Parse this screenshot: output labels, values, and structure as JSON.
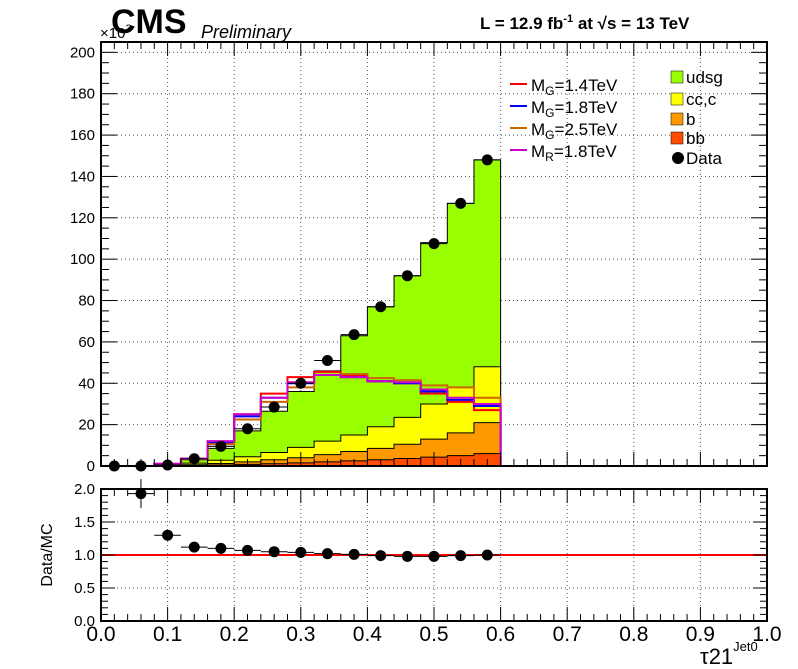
{
  "header": {
    "experiment": "CMS",
    "status": "Preliminary",
    "lumi_text": "L = 12.9 fb",
    "lumi_exp": "-1",
    "energy_text": " at ",
    "sqrt_symbol": "√",
    "energy_value": "s = 13 TeV",
    "y_multiplier": "×10",
    "y_multiplier_exp": "3"
  },
  "chart_data": [
    {
      "type": "bar",
      "stacked": true,
      "xlabel": "τ21",
      "xlabel_sup": "Jet0",
      "xlim": [
        0,
        1
      ],
      "ylim": [
        0,
        205
      ],
      "bin_width": 0.04,
      "bin_edges": [
        0.0,
        0.04,
        0.08,
        0.12,
        0.16,
        0.2,
        0.24,
        0.28,
        0.32,
        0.36,
        0.4,
        0.44,
        0.48,
        0.52,
        0.56,
        0.6
      ],
      "yticks": [
        0,
        20,
        40,
        60,
        80,
        100,
        120,
        140,
        160,
        180,
        200
      ],
      "stack_cumulative": true,
      "stack_order_bottom_to_top": [
        "bb",
        "b",
        "cc,c",
        "udsg"
      ],
      "stack": [
        {
          "name": "bb",
          "color": "#ff4d00",
          "values": [
            0,
            0,
            0.1,
            0.3,
            0.5,
            0.8,
            1.1,
            1.5,
            2.0,
            2.5,
            3.0,
            3.6,
            4.3,
            5.0,
            6.0
          ]
        },
        {
          "name": "b",
          "color": "#ff9900",
          "values": [
            0,
            0,
            0.2,
            0.6,
            1.2,
            2.0,
            3.0,
            4.0,
            5.5,
            7.0,
            8.5,
            10.5,
            13.0,
            16.0,
            21.0
          ]
        },
        {
          "name": "cc,c",
          "color": "#ffff00",
          "values": [
            0,
            0,
            0.4,
            1.4,
            2.8,
            4.5,
            6.5,
            9.0,
            12.0,
            15.0,
            19.0,
            23.5,
            30.0,
            38.0,
            48.0
          ]
        },
        {
          "name": "udsg",
          "color": "#99ff00",
          "values": [
            0,
            0,
            0.5,
            3.0,
            8.5,
            17.0,
            26.5,
            36.0,
            46.0,
            63.0,
            77.0,
            92.0,
            108.0,
            127.0,
            148.0
          ]
        }
      ],
      "signals": [
        {
          "name": "M_G=1.4TeV",
          "label_main": "M",
          "label_sub": "G",
          "label_rest": "=1.4TeV",
          "color": "#ff0000",
          "values": [
            0,
            0,
            1.0,
            3.5,
            11.0,
            25.0,
            35.0,
            43.0,
            45.5,
            43.5,
            41.0,
            40.0,
            35.0,
            31.0,
            27.0
          ]
        },
        {
          "name": "M_G=1.8TeV",
          "label_main": "M",
          "label_sub": "G",
          "label_rest": "=1.8TeV",
          "color": "#0000ff",
          "values": [
            0,
            0,
            1.0,
            3.5,
            11.5,
            24.0,
            33.0,
            40.0,
            44.0,
            43.0,
            41.0,
            40.0,
            36.0,
            32.0,
            29.0
          ]
        },
        {
          "name": "M_G=2.5TeV",
          "label_main": "M",
          "label_sub": "G",
          "label_rest": "=2.5TeV",
          "color": "#cc6600",
          "values": [
            0,
            0,
            1.0,
            3.5,
            10.5,
            22.5,
            31.0,
            38.0,
            44.0,
            44.5,
            42.5,
            41.5,
            39.0,
            38.0,
            33.0
          ]
        },
        {
          "name": "M_R=1.8TeV",
          "label_main": "M",
          "label_sub": "R",
          "label_rest": "=1.8TeV",
          "color": "#cc00cc",
          "values": [
            0,
            0,
            1.0,
            3.5,
            12.0,
            25.0,
            33.0,
            40.5,
            44.0,
            43.0,
            41.0,
            40.5,
            37.0,
            33.0,
            30.0
          ]
        }
      ],
      "data": {
        "name": "Data",
        "color": "#000000",
        "x": [
          0.02,
          0.06,
          0.1,
          0.14,
          0.18,
          0.22,
          0.26,
          0.3,
          0.34,
          0.38,
          0.42,
          0.46,
          0.5,
          0.54,
          0.58
        ],
        "y": [
          0,
          0,
          0.5,
          3.5,
          9.5,
          18.0,
          28.5,
          40.0,
          51.0,
          63.5,
          77.0,
          92.0,
          107.5,
          127.0,
          148.0
        ]
      },
      "legend_columns": [
        [
          "M_G=1.4TeV",
          "M_G=1.8TeV",
          "M_G=2.5TeV",
          "M_R=1.8TeV"
        ],
        [
          "udsg",
          "cc,c",
          "b",
          "bb",
          "Data"
        ]
      ],
      "legend_placement": "top-right",
      "grid": true
    },
    {
      "type": "scatter",
      "ylabel": "Data/MC",
      "xlim": [
        0,
        1
      ],
      "ylim": [
        0,
        2
      ],
      "yticks": [
        "0.0",
        "0.5",
        "1.0",
        "1.5",
        "2.0"
      ],
      "xticks": [
        "0.0",
        "0.1",
        "0.2",
        "0.3",
        "0.4",
        "0.5",
        "0.6",
        "0.7",
        "0.8",
        "0.9",
        "1.0"
      ],
      "reference_line": 1.0,
      "reference_color": "#ff0000",
      "grid": true,
      "x": [
        0.06,
        0.1,
        0.14,
        0.18,
        0.22,
        0.26,
        0.3,
        0.34,
        0.38,
        0.42,
        0.46,
        0.5,
        0.54,
        0.58
      ],
      "y": [
        1.93,
        1.3,
        1.12,
        1.1,
        1.07,
        1.05,
        1.04,
        1.02,
        1.01,
        0.99,
        0.98,
        0.98,
        0.99,
        1.0
      ],
      "yerr": [
        0.22,
        0.06,
        0.03,
        0.02,
        0.02,
        0.01,
        0.01,
        0.01,
        0.01,
        0.01,
        0.01,
        0.01,
        0.01,
        0.01
      ]
    }
  ]
}
